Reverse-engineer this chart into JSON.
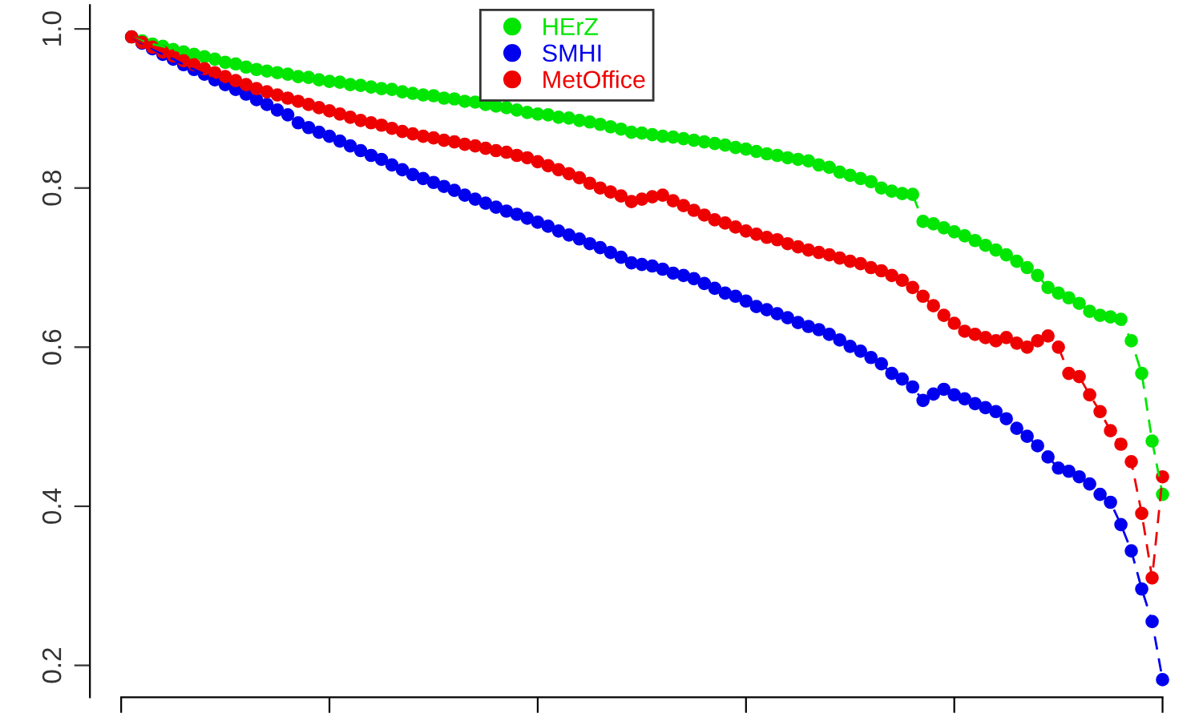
{
  "chart_data": {
    "type": "line",
    "categories": [
      null,
      null,
      null,
      null,
      null,
      null,
      null,
      null,
      null,
      null,
      null,
      null,
      null,
      null,
      null,
      null,
      null,
      null,
      null,
      null,
      null,
      null,
      null,
      null,
      null,
      null,
      null,
      null,
      null,
      null,
      null,
      null,
      null,
      null,
      null,
      null,
      null,
      null,
      null,
      null,
      null,
      null,
      null,
      null,
      null,
      null,
      null,
      null,
      null,
      null,
      null,
      null,
      null,
      null,
      null,
      null,
      null,
      null,
      null,
      null,
      null,
      null,
      null,
      null,
      null,
      null,
      null,
      null,
      null,
      null,
      null,
      null,
      null,
      null,
      null,
      null,
      null,
      null,
      null,
      null,
      null,
      null,
      null,
      null,
      null,
      null,
      null,
      null,
      null,
      null,
      null,
      null,
      null,
      null,
      null,
      null,
      null,
      null,
      null,
      null
    ],
    "series": [
      {
        "name": "HErZ",
        "color": "#00e600",
        "values": [
          0.99,
          0.985,
          0.981,
          0.978,
          0.974,
          0.971,
          0.968,
          0.965,
          0.962,
          0.958,
          0.956,
          0.952,
          0.949,
          0.947,
          0.945,
          0.943,
          0.94,
          0.939,
          0.936,
          0.934,
          0.933,
          0.93,
          0.929,
          0.927,
          0.925,
          0.924,
          0.921,
          0.919,
          0.917,
          0.916,
          0.913,
          0.912,
          0.909,
          0.908,
          0.905,
          0.903,
          0.901,
          0.898,
          0.895,
          0.893,
          0.892,
          0.889,
          0.888,
          0.885,
          0.883,
          0.88,
          0.877,
          0.874,
          0.87,
          0.869,
          0.867,
          0.865,
          0.864,
          0.862,
          0.86,
          0.858,
          0.856,
          0.854,
          0.851,
          0.849,
          0.846,
          0.843,
          0.841,
          0.838,
          0.836,
          0.834,
          0.829,
          0.826,
          0.82,
          0.816,
          0.812,
          0.808,
          0.8,
          0.796,
          0.793,
          0.792,
          0.758,
          0.755,
          0.75,
          0.745,
          0.74,
          0.734,
          0.728,
          0.722,
          0.716,
          0.708,
          0.7,
          0.69,
          0.675,
          0.668,
          0.662,
          0.655,
          0.645,
          0.64,
          0.638,
          0.635,
          0.608,
          0.567,
          0.482,
          0.415
        ]
      },
      {
        "name": "SMHI",
        "color": "#0000ee",
        "values": [
          0.99,
          0.982,
          0.975,
          0.968,
          0.962,
          0.955,
          0.949,
          0.943,
          0.936,
          0.93,
          0.924,
          0.918,
          0.911,
          0.905,
          0.898,
          0.892,
          0.882,
          0.876,
          0.87,
          0.865,
          0.859,
          0.853,
          0.847,
          0.841,
          0.836,
          0.829,
          0.823,
          0.817,
          0.812,
          0.807,
          0.802,
          0.797,
          0.791,
          0.786,
          0.781,
          0.776,
          0.771,
          0.767,
          0.762,
          0.757,
          0.752,
          0.746,
          0.741,
          0.736,
          0.73,
          0.725,
          0.719,
          0.713,
          0.706,
          0.704,
          0.702,
          0.698,
          0.693,
          0.69,
          0.686,
          0.68,
          0.674,
          0.668,
          0.664,
          0.658,
          0.651,
          0.647,
          0.642,
          0.637,
          0.631,
          0.626,
          0.622,
          0.616,
          0.609,
          0.601,
          0.595,
          0.587,
          0.579,
          0.567,
          0.56,
          0.55,
          0.533,
          0.541,
          0.547,
          0.54,
          0.535,
          0.529,
          0.524,
          0.519,
          0.51,
          0.498,
          0.488,
          0.476,
          0.462,
          0.448,
          0.444,
          0.437,
          0.428,
          0.415,
          0.405,
          0.377,
          0.344,
          0.296,
          0.255,
          0.182
        ]
      },
      {
        "name": "MetOffice",
        "color": "#ee0000",
        "values": [
          0.99,
          0.983,
          0.977,
          0.971,
          0.966,
          0.96,
          0.955,
          0.95,
          0.945,
          0.94,
          0.935,
          0.93,
          0.925,
          0.921,
          0.917,
          0.913,
          0.909,
          0.905,
          0.901,
          0.897,
          0.893,
          0.889,
          0.885,
          0.882,
          0.879,
          0.875,
          0.871,
          0.868,
          0.865,
          0.863,
          0.86,
          0.858,
          0.855,
          0.853,
          0.85,
          0.847,
          0.845,
          0.841,
          0.838,
          0.833,
          0.828,
          0.823,
          0.818,
          0.813,
          0.806,
          0.8,
          0.795,
          0.79,
          0.783,
          0.786,
          0.789,
          0.791,
          0.784,
          0.778,
          0.772,
          0.766,
          0.76,
          0.756,
          0.751,
          0.746,
          0.742,
          0.738,
          0.735,
          0.73,
          0.726,
          0.722,
          0.719,
          0.716,
          0.712,
          0.708,
          0.705,
          0.7,
          0.696,
          0.69,
          0.684,
          0.675,
          0.664,
          0.652,
          0.64,
          0.63,
          0.62,
          0.616,
          0.612,
          0.608,
          0.612,
          0.605,
          0.6,
          0.608,
          0.614,
          0.6,
          0.567,
          0.563,
          0.54,
          0.519,
          0.495,
          0.478,
          0.456,
          0.391,
          0.31,
          0.437
        ]
      }
    ],
    "ylim": [
      0.16,
      1.03
    ],
    "yticks": [
      0.2,
      0.4,
      0.6,
      0.8,
      {
        "value": 1.0,
        "label": "1.0"
      }
    ],
    "marker": "circle",
    "line_style": "dashed",
    "legend": "top",
    "tick_labels": "y"
  }
}
